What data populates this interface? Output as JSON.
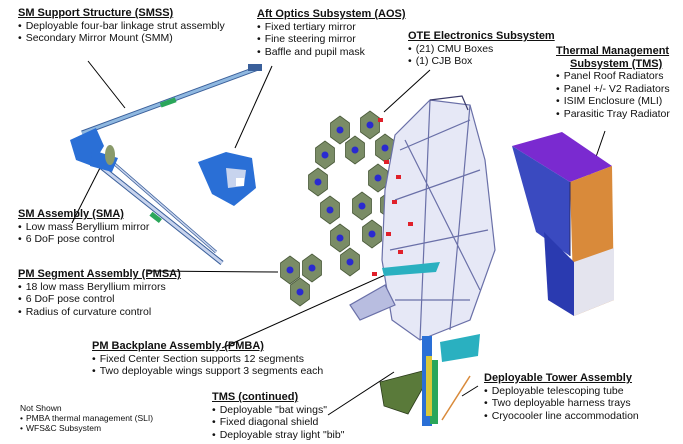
{
  "callouts": {
    "smss": {
      "title": "SM Support Structure (SMSS)",
      "items": [
        "Deployable four-bar linkage strut assembly",
        "Secondary Mirror Mount (SMM)"
      ]
    },
    "aos": {
      "title": "Aft Optics Subsystem (AOS)",
      "items": [
        "Fixed tertiary mirror",
        "Fine steering mirror",
        "Baffle and pupil mask"
      ]
    },
    "ote": {
      "title": "OTE Electronics Subsystem",
      "items": [
        "(21) CMU Boxes",
        "(1) CJB Box"
      ]
    },
    "tms": {
      "title_line1": "Thermal Management",
      "title_line2": "Subsystem (TMS)",
      "items": [
        "Panel Roof Radiators",
        "Panel +/- V2 Radiators",
        "ISIM Enclosure (MLI)",
        "Parasitic Tray Radiator"
      ]
    },
    "sma": {
      "title": "SM Assembly (SMA)",
      "items": [
        "Low mass Beryllium mirror",
        "6 DoF pose control"
      ]
    },
    "pmsa": {
      "title": "PM Segment Assembly (PMSA)",
      "items": [
        "18 low mass Beryllium mirrors",
        "6 DoF pose control",
        "Radius of curvature control"
      ]
    },
    "pmba": {
      "title": "PM Backplane Assembly (PMBA)",
      "items": [
        "Fixed Center Section supports 12 segments",
        "Two deployable wings support 3 segments each"
      ]
    },
    "tms2": {
      "title": "TMS (continued)",
      "items": [
        "Deployable \"bat wings\"",
        "Fixed diagonal shield",
        "Deployable stray light \"bib\""
      ]
    },
    "dta": {
      "title": "Deployable Tower Assembly",
      "items": [
        "Deployable telescoping tube",
        "Two deployable harness trays",
        "Cryocooler line accommodation"
      ]
    }
  },
  "not_shown": {
    "heading": "Not Shown",
    "items": [
      "PMBA thermal management (SLI)",
      "WFS&C Subsystem"
    ]
  },
  "colors": {
    "strut": "#8fb8e0",
    "strut_edge": "#3a5f9a",
    "mount": "#2a6fd6",
    "segment": "#7a8c66",
    "segment_edge": "#4a5a3a",
    "actuator": "#2a2ad0",
    "truss": "#b8bde0",
    "truss_edge": "#6a70a8",
    "radiator_top": "#7a2ad0",
    "radiator_side": "#d98a3a",
    "panel_blue": "#3a4ac0",
    "tower_green": "#2aa65a",
    "tower_blue": "#2a6fd6",
    "cmu_red": "#e0202a",
    "cyan": "#2ab0c0"
  }
}
